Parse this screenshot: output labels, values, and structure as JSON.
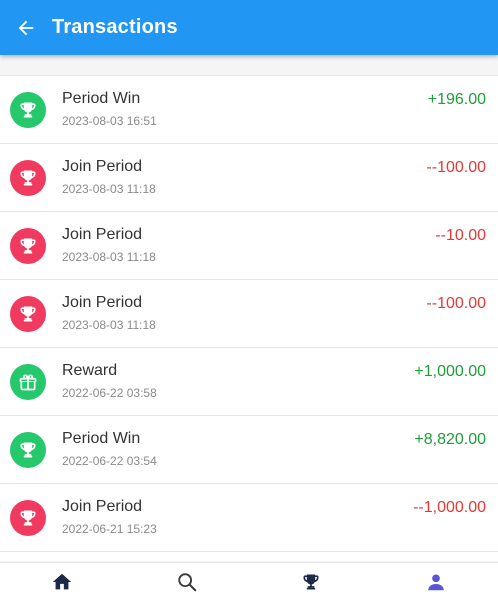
{
  "header": {
    "title": "Transactions",
    "back_icon": "arrow-left-icon"
  },
  "colors": {
    "header_bg": "#2196f3",
    "positive": "#1f9d3a",
    "negative": "#e53935",
    "icon_red": "#f13a5f",
    "icon_green": "#25c86b",
    "nav_dark": "#1b2a4a",
    "nav_active": "#5b56d6"
  },
  "transactions": [
    {
      "title": "Period Win",
      "date": "2023-08-03 16:51",
      "amount": "+196.00",
      "sign": "positive",
      "icon": "trophy-icon",
      "icon_color": "green"
    },
    {
      "title": "Join Period",
      "date": "2023-08-03 11:18",
      "amount": "--100.00",
      "sign": "negative",
      "icon": "trophy-icon",
      "icon_color": "red"
    },
    {
      "title": "Join Period",
      "date": "2023-08-03 11:18",
      "amount": "--10.00",
      "sign": "negative",
      "icon": "trophy-icon",
      "icon_color": "red"
    },
    {
      "title": "Join Period",
      "date": "2023-08-03 11:18",
      "amount": "--100.00",
      "sign": "negative",
      "icon": "trophy-icon",
      "icon_color": "red"
    },
    {
      "title": "Reward",
      "date": "2022-06-22 03:58",
      "amount": "+1,000.00",
      "sign": "positive",
      "icon": "gift-icon",
      "icon_color": "green"
    },
    {
      "title": "Period Win",
      "date": "2022-06-22 03:54",
      "amount": "+8,820.00",
      "sign": "positive",
      "icon": "trophy-icon",
      "icon_color": "green"
    },
    {
      "title": "Join Period",
      "date": "2022-06-21 15:23",
      "amount": "--1,000.00",
      "sign": "negative",
      "icon": "trophy-icon",
      "icon_color": "red"
    }
  ],
  "bottom_nav": [
    {
      "icon": "home-icon",
      "active": false
    },
    {
      "icon": "search-icon",
      "active": false
    },
    {
      "icon": "trophy-icon",
      "active": false
    },
    {
      "icon": "person-icon",
      "active": true
    }
  ]
}
